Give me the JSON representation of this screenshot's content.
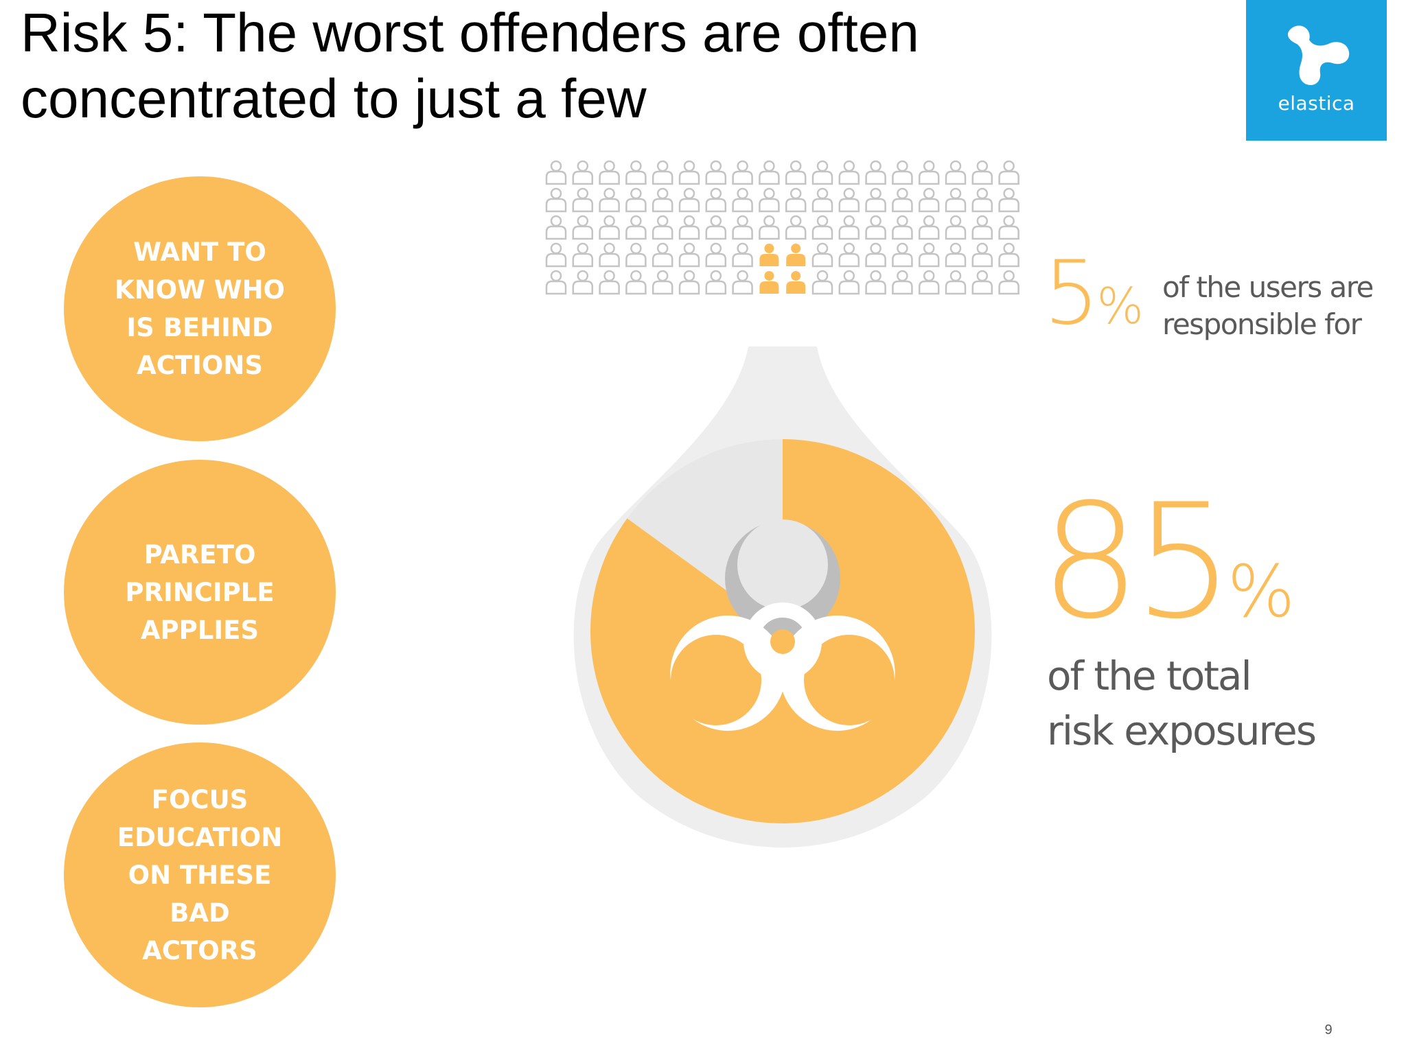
{
  "slide": {
    "title": "Risk 5: The worst offenders are often concentrated to just a few",
    "page_number": "9"
  },
  "logo": {
    "text": "elastica",
    "background_color": "#1aa3df",
    "icon": "elastica-logo-icon"
  },
  "circles": [
    {
      "text": "WANT TO\nKNOW WHO\nIS BEHIND\nACTIONS"
    },
    {
      "text": "PARETO\nPRINCIPLE\nAPPLIES"
    },
    {
      "text": "FOCUS\nEDUCATION\nON THESE\nBAD\nACTORS"
    }
  ],
  "infographic": {
    "users_grid": {
      "rows": 5,
      "columns": 18,
      "highlighted": [
        [
          3,
          8
        ],
        [
          3,
          9
        ],
        [
          4,
          8
        ],
        [
          4,
          9
        ]
      ],
      "icon": "person-icon"
    },
    "users_stat": {
      "value": "5",
      "unit": "%",
      "caption": "of the users are\nresponsible for"
    },
    "risk_stat": {
      "value": "85",
      "unit": "%",
      "caption": "of the total\nrisk exposures"
    },
    "pie": {
      "highlighted_percent": 85,
      "icon": "biohazard-icon"
    },
    "colors": {
      "accent": "#fbbd5a",
      "user_outline": "#c4c4c4",
      "drop": "#eeeeee",
      "caption_text": "#5a5a5a"
    }
  }
}
